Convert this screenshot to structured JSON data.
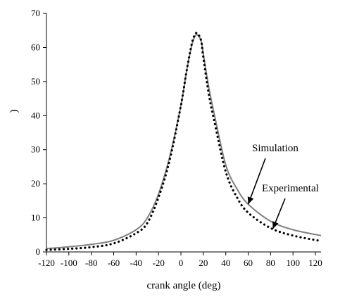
{
  "chart_data": {
    "type": "line",
    "title": "",
    "xlabel": "crank angle (deg)",
    "ylabel": ")",
    "xlim": [
      -120,
      125
    ],
    "ylim": [
      0,
      70
    ],
    "xticks": [
      -120,
      -100,
      -80,
      -60,
      -40,
      -20,
      0,
      20,
      40,
      60,
      80,
      100,
      120
    ],
    "yticks": [
      0,
      10,
      20,
      30,
      40,
      50,
      60,
      70
    ],
    "grid": false,
    "legend": "none",
    "series": [
      {
        "name": "Simulation",
        "color": "#808080",
        "style": "solid",
        "x": [
          -120,
          -100,
          -80,
          -60,
          -40,
          -30,
          -20,
          -10,
          0,
          5,
          10,
          13,
          15,
          18,
          20,
          25,
          30,
          40,
          50,
          60,
          80,
          100,
          125
        ],
        "y": [
          1.0,
          1.5,
          2.2,
          3.4,
          6.5,
          10.0,
          17.0,
          28.0,
          43.0,
          53.0,
          61.0,
          63.5,
          63.6,
          62.0,
          58.0,
          48.0,
          40.0,
          25.5,
          18.5,
          14.0,
          9.0,
          6.5,
          4.8
        ]
      },
      {
        "name": "Experimental",
        "color": "#000000",
        "style": "dotted",
        "x": [
          -120,
          -100,
          -80,
          -60,
          -40,
          -30,
          -20,
          -10,
          0,
          5,
          10,
          13,
          15,
          18,
          20,
          25,
          30,
          40,
          50,
          60,
          80,
          100,
          125
        ],
        "y": [
          0.6,
          0.9,
          1.4,
          2.5,
          5.5,
          8.5,
          16.0,
          27.0,
          43.0,
          53.0,
          61.5,
          64.0,
          64.0,
          62.0,
          57.0,
          46.0,
          38.0,
          23.5,
          16.0,
          11.5,
          7.0,
          4.8,
          3.2
        ]
      }
    ],
    "annotations": [
      {
        "text": "Simulation",
        "target_x": 60,
        "target_y": 14.0
      },
      {
        "text": "Experimental",
        "target_x": 82,
        "target_y": 6.8
      }
    ]
  }
}
